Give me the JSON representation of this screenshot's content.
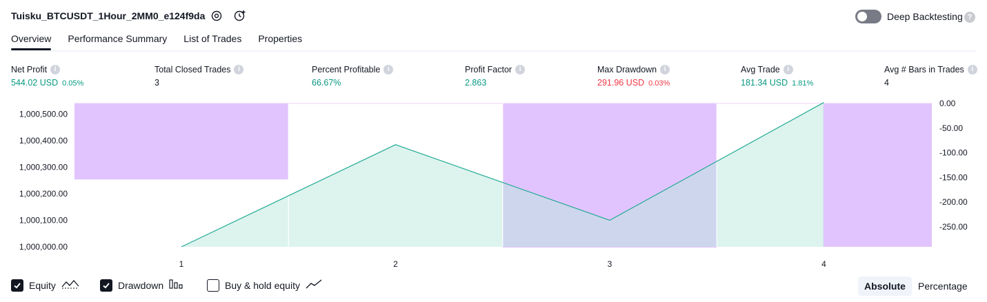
{
  "header": {
    "title": "Tuisku_BTCUSDT_1Hour_2MM0_e124f9da",
    "icons": [
      "settings-icon",
      "add-alert-icon"
    ],
    "deep_backtesting_label": "Deep Backtesting",
    "deep_backtesting_on": false,
    "help_glyph": "?"
  },
  "tabs": [
    {
      "label": "Overview",
      "active": true
    },
    {
      "label": "Performance Summary",
      "active": false
    },
    {
      "label": "List of Trades",
      "active": false
    },
    {
      "label": "Properties",
      "active": false
    }
  ],
  "metrics": [
    {
      "label": "Net Profit",
      "value": "544.02 USD",
      "pct": "0.05%",
      "tone": "pos"
    },
    {
      "label": "Total Closed Trades",
      "value": "3",
      "pct": "",
      "tone": "neutral"
    },
    {
      "label": "Percent Profitable",
      "value": "66.67%",
      "pct": "",
      "tone": "pos"
    },
    {
      "label": "Profit Factor",
      "value": "2.863",
      "pct": "",
      "tone": "pos"
    },
    {
      "label": "Max Drawdown",
      "value": "291.96 USD",
      "pct": "0.03%",
      "tone": "neg"
    },
    {
      "label": "Avg Trade",
      "value": "181.34 USD",
      "pct": "1.81%",
      "tone": "pos"
    },
    {
      "label": "Avg # Bars in Trades",
      "value": "4",
      "pct": "",
      "tone": "neutral"
    }
  ],
  "info_glyph": "i",
  "chart_data": {
    "type": "line",
    "x": [
      1,
      2,
      3,
      4
    ],
    "x_tick_labels": [
      "1",
      "2",
      "3",
      "4"
    ],
    "series": [
      {
        "kind": "equity",
        "values": [
          1000000.0,
          1000385.0,
          1000100.0,
          1000544.02
        ]
      },
      {
        "kind": "drawdown",
        "values": [
          -154.0,
          0.0,
          -291.96,
          0.0
        ]
      }
    ],
    "y_left": {
      "ticks": [
        1000000,
        1000100,
        1000200,
        1000300,
        1000400,
        1000500
      ],
      "tick_labels": [
        "1,000,000.00",
        "1,000,100.00",
        "1,000,200.00",
        "1,000,300.00",
        "1,000,400.00",
        "1,000,500.00"
      ]
    },
    "y_right": {
      "ticks": [
        0,
        -50,
        -100,
        -150,
        -200,
        -250
      ],
      "tick_labels": [
        "0.00",
        "-50.00",
        "-100.00",
        "-150.00",
        "-200.00",
        "-250.00"
      ]
    },
    "colors": {
      "equity_line": "#22ab94",
      "equity_fill": "#d9f2ec",
      "drawdown_fill": "#e1c4fd",
      "overlap_fill": "#c4c3ec"
    }
  },
  "legend": {
    "items": [
      {
        "label": "Equity",
        "checked": true,
        "icon": "equity-line-icon"
      },
      {
        "label": "Drawdown",
        "checked": true,
        "icon": "drawdown-bars-icon"
      },
      {
        "label": "Buy & hold equity",
        "checked": false,
        "icon": "buy-hold-line-icon"
      }
    ],
    "modes": [
      {
        "label": "Absolute",
        "active": true
      },
      {
        "label": "Percentage",
        "active": false
      }
    ]
  }
}
